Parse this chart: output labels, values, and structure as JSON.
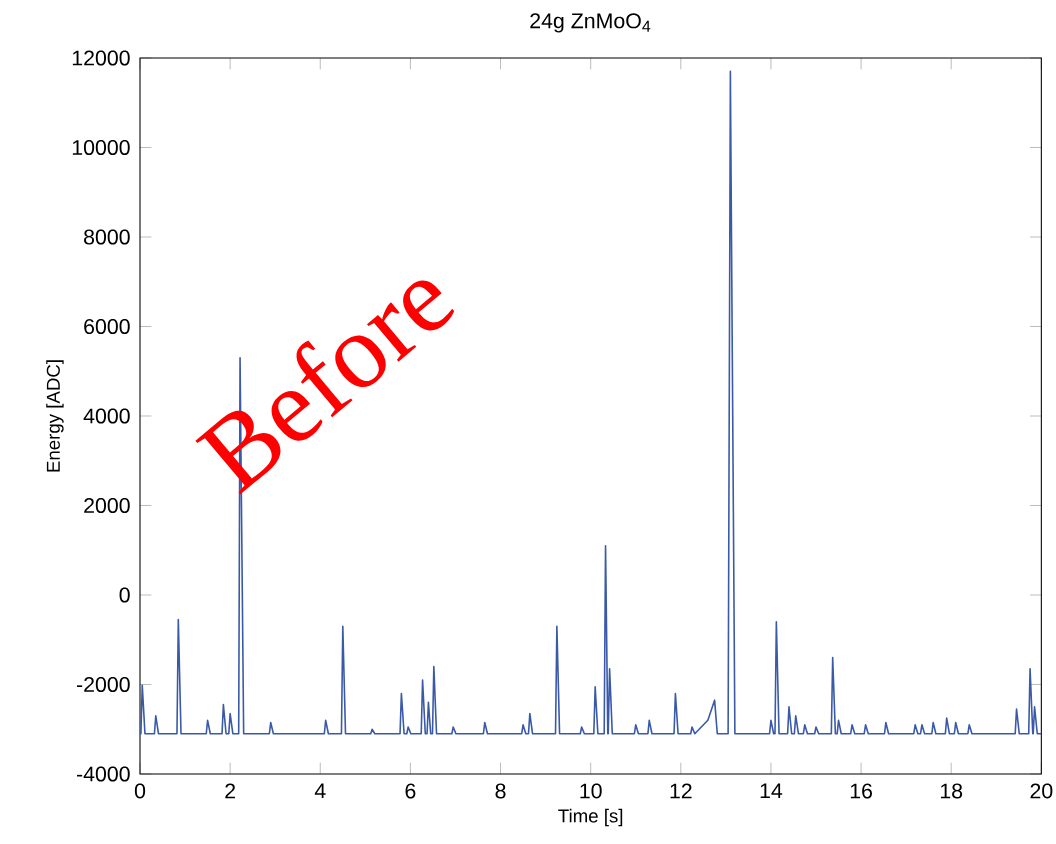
{
  "chart_data": {
    "type": "line",
    "title": "24g ZnMoO$_{4}$",
    "xlabel": "Time [s]",
    "ylabel": "Energy [ADC]",
    "annotations": [
      "Before"
    ],
    "xlim": [
      0,
      20
    ],
    "ylim": [
      -4000,
      12000
    ],
    "xticks": [
      0,
      2,
      4,
      6,
      8,
      10,
      12,
      14,
      16,
      18,
      20
    ],
    "yticks": [
      -4000,
      -2000,
      0,
      2000,
      4000,
      6000,
      8000,
      10000,
      12000
    ],
    "grid": false,
    "marker": "none",
    "line_style": "solid",
    "series": [
      {
        "color": "#3a5aa8",
        "x": [
          0,
          0.02,
          0.05,
          0.11,
          0.32,
          0.35,
          0.41,
          0.82,
          0.85,
          0.91,
          1.47,
          1.5,
          1.56,
          1.82,
          1.85,
          1.91,
          1.97,
          2.0,
          2.06,
          2.19,
          2.22,
          2.3,
          2.87,
          2.9,
          2.96,
          4.09,
          4.12,
          4.18,
          4.47,
          4.5,
          4.56,
          5.12,
          5.15,
          5.21,
          5.77,
          5.8,
          5.86,
          5.92,
          5.95,
          6.01,
          6.24,
          6.27,
          6.33,
          6.37,
          6.4,
          6.45,
          6.49,
          6.52,
          6.58,
          6.92,
          6.95,
          7.01,
          7.62,
          7.65,
          7.71,
          8.47,
          8.5,
          8.56,
          8.62,
          8.65,
          8.71,
          9.22,
          9.25,
          9.31,
          9.77,
          9.8,
          9.86,
          10.07,
          10.1,
          10.16,
          10.3,
          10.33,
          10.38,
          10.39,
          10.42,
          10.48,
          10.97,
          11.0,
          11.06,
          11.27,
          11.3,
          11.36,
          11.85,
          11.88,
          11.94,
          12.22,
          12.25,
          12.31,
          12.6,
          12.75,
          12.81,
          13.05,
          13.1,
          13.2,
          13.97,
          14.0,
          14.06,
          14.09,
          14.12,
          14.18,
          14.37,
          14.4,
          14.46,
          14.52,
          14.55,
          14.61,
          14.72,
          14.75,
          14.81,
          14.97,
          15.0,
          15.06,
          15.34,
          15.37,
          15.43,
          15.47,
          15.5,
          15.56,
          15.77,
          15.8,
          15.86,
          16.07,
          16.1,
          16.16,
          16.52,
          16.55,
          16.61,
          17.17,
          17.2,
          17.26,
          17.32,
          17.35,
          17.41,
          17.57,
          17.6,
          17.66,
          17.87,
          17.9,
          17.96,
          18.07,
          18.1,
          18.16,
          18.37,
          18.4,
          18.46,
          19.42,
          19.45,
          19.51,
          19.72,
          19.75,
          19.81,
          19.82,
          19.85,
          19.91,
          20
        ],
        "values": [
          -3100,
          -3100,
          -2020,
          -3100,
          -3100,
          -2700,
          -3100,
          -3100,
          -550,
          -3100,
          -3100,
          -2800,
          -3100,
          -3100,
          -2450,
          -3100,
          -3100,
          -2650,
          -3100,
          -3100,
          5300,
          -3100,
          -3100,
          -2850,
          -3100,
          -3100,
          -2800,
          -3100,
          -3100,
          -700,
          -3100,
          -3100,
          -3000,
          -3100,
          -3100,
          -2200,
          -3100,
          -3100,
          -2950,
          -3100,
          -3100,
          -1900,
          -3100,
          -3100,
          -2400,
          -3100,
          -3100,
          -1600,
          -3100,
          -3100,
          -2950,
          -3100,
          -3100,
          -2850,
          -3100,
          -3100,
          -2900,
          -3100,
          -3100,
          -2650,
          -3100,
          -3100,
          -700,
          -3100,
          -3100,
          -2950,
          -3100,
          -3100,
          -2050,
          -3100,
          -3100,
          1100,
          -3100,
          -3100,
          -1650,
          -3100,
          -3100,
          -2900,
          -3100,
          -3100,
          -2800,
          -3100,
          -3100,
          -2200,
          -3100,
          -3100,
          -2950,
          -3100,
          -2800,
          -2350,
          -3100,
          -3100,
          11700,
          -3100,
          -3100,
          -2800,
          -3100,
          -3100,
          -600,
          -3100,
          -3100,
          -2500,
          -3100,
          -3100,
          -2700,
          -3100,
          -3100,
          -2900,
          -3100,
          -3100,
          -2950,
          -3100,
          -3100,
          -1400,
          -3100,
          -3100,
          -2800,
          -3100,
          -3100,
          -2900,
          -3100,
          -3100,
          -2900,
          -3100,
          -3100,
          -2850,
          -3100,
          -3100,
          -2900,
          -3100,
          -3100,
          -2900,
          -3100,
          -3100,
          -2850,
          -3100,
          -3100,
          -2750,
          -3100,
          -3100,
          -2850,
          -3100,
          -3100,
          -2900,
          -3100,
          -3100,
          -2550,
          -3100,
          -3100,
          -1650,
          -3100,
          -3100,
          -2500,
          -3100,
          -3100
        ]
      }
    ]
  }
}
